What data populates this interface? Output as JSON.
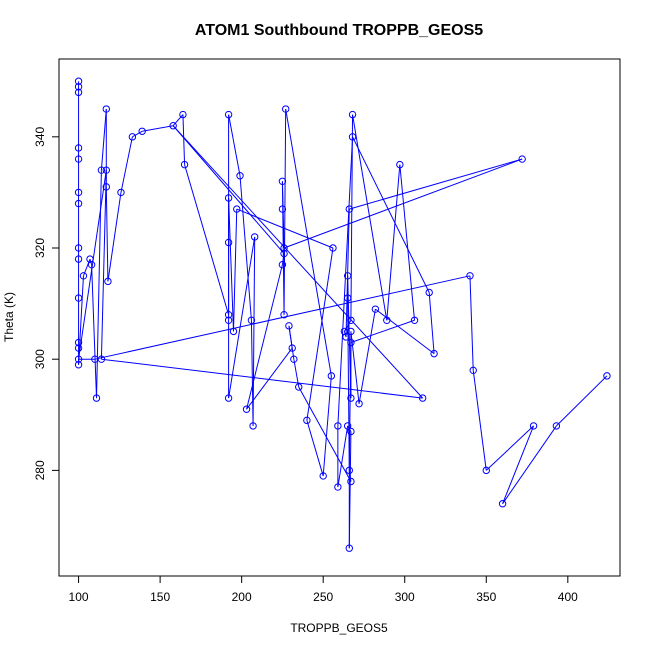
{
  "chart_data": {
    "type": "scatter",
    "title": "ATOM1 Southbound TROPPB_GEOS5",
    "xlabel": "TROPPB_GEOS5",
    "ylabel": "Theta (K)",
    "xlim": [
      88,
      432
    ],
    "ylim": [
      261,
      354
    ],
    "x_ticks": [
      100,
      150,
      200,
      250,
      300,
      350,
      400
    ],
    "y_ticks": [
      280,
      300,
      320,
      340
    ],
    "grid": false,
    "legend": "none",
    "colors": {
      "series": "#0000ff",
      "axes": "#000000",
      "background": "#ffffff"
    },
    "series": [
      {
        "points": [
          [
            100,
            350
          ],
          [
            100,
            349
          ],
          [
            100,
            348
          ],
          [
            100,
            338
          ],
          [
            100,
            336
          ],
          [
            100,
            330
          ],
          [
            100,
            328
          ],
          [
            100,
            320
          ],
          [
            100,
            318
          ],
          [
            100,
            311
          ],
          [
            100,
            303
          ],
          [
            100,
            302
          ],
          [
            100,
            300
          ],
          [
            100,
            299
          ],
          [
            103,
            315
          ],
          [
            107,
            318
          ],
          [
            108,
            317
          ],
          [
            110,
            300
          ],
          [
            111,
            293
          ],
          [
            114,
            300
          ],
          [
            114,
            334
          ],
          [
            117,
            345
          ],
          [
            117,
            331
          ],
          [
            117,
            334
          ],
          [
            118,
            314
          ],
          [
            126,
            330
          ],
          [
            133,
            340
          ],
          [
            139,
            341
          ],
          [
            158,
            342
          ],
          [
            164,
            344
          ],
          [
            165,
            335
          ],
          [
            192,
            344
          ],
          [
            192,
            329
          ],
          [
            192,
            321
          ],
          [
            192,
            308
          ],
          [
            192,
            307
          ],
          [
            192,
            293
          ],
          [
            195,
            305
          ],
          [
            197,
            327
          ],
          [
            199,
            333
          ],
          [
            203,
            291
          ],
          [
            206,
            307
          ],
          [
            207,
            288
          ],
          [
            208,
            322
          ],
          [
            225,
            332
          ],
          [
            225,
            327
          ],
          [
            225,
            317
          ],
          [
            226,
            320
          ],
          [
            226,
            319
          ],
          [
            226,
            308
          ],
          [
            227,
            345
          ],
          [
            229,
            306
          ],
          [
            231,
            302
          ],
          [
            232,
            300
          ],
          [
            235,
            295
          ],
          [
            240,
            289
          ],
          [
            250,
            279
          ],
          [
            255,
            297
          ],
          [
            256,
            320
          ],
          [
            259,
            277
          ],
          [
            259,
            288
          ],
          [
            263,
            305
          ],
          [
            264,
            304
          ],
          [
            265,
            315
          ],
          [
            265,
            311
          ],
          [
            265,
            288
          ],
          [
            266,
            327
          ],
          [
            266,
            280
          ],
          [
            266,
            266
          ],
          [
            267,
            303
          ],
          [
            267,
            305
          ],
          [
            267,
            307
          ],
          [
            267,
            287
          ],
          [
            267,
            293
          ],
          [
            267,
            278
          ],
          [
            268,
            340
          ],
          [
            268,
            344
          ],
          [
            272,
            292
          ],
          [
            282,
            309
          ],
          [
            289,
            307
          ],
          [
            297,
            335
          ],
          [
            306,
            307
          ],
          [
            311,
            293
          ],
          [
            315,
            312
          ],
          [
            318,
            301
          ],
          [
            340,
            315
          ],
          [
            342,
            298
          ],
          [
            350,
            280
          ],
          [
            360,
            274
          ],
          [
            372,
            336
          ],
          [
            379,
            288
          ],
          [
            393,
            288
          ],
          [
            424,
            297
          ]
        ],
        "path": [
          [
            100,
            350
          ],
          [
            100,
            348
          ],
          [
            100,
            338
          ],
          [
            100,
            330
          ],
          [
            100,
            320
          ],
          [
            100,
            311
          ],
          [
            100,
            303
          ],
          [
            100,
            299
          ],
          [
            103,
            315
          ],
          [
            107,
            318
          ],
          [
            108,
            317
          ],
          [
            111,
            293
          ],
          [
            114,
            334
          ],
          [
            117,
            345
          ],
          [
            117,
            331
          ],
          [
            118,
            314
          ],
          [
            126,
            330
          ],
          [
            133,
            340
          ],
          [
            139,
            341
          ],
          [
            158,
            342
          ],
          [
            164,
            344
          ],
          [
            165,
            335
          ],
          [
            192,
            308
          ],
          [
            192,
            344
          ],
          [
            199,
            333
          ],
          [
            206,
            307
          ],
          [
            207,
            288
          ],
          [
            208,
            322
          ],
          [
            192,
            293
          ],
          [
            192,
            329
          ],
          [
            195,
            305
          ],
          [
            197,
            327
          ],
          [
            256,
            320
          ],
          [
            240,
            289
          ],
          [
            250,
            279
          ],
          [
            255,
            297
          ],
          [
            227,
            345
          ],
          [
            226,
            308
          ],
          [
            225,
            332
          ],
          [
            226,
            320
          ],
          [
            372,
            336
          ],
          [
            266,
            327
          ],
          [
            264,
            304
          ],
          [
            263,
            305
          ],
          [
            267,
            307
          ],
          [
            268,
            344
          ],
          [
            289,
            307
          ],
          [
            297,
            335
          ],
          [
            306,
            307
          ],
          [
            267,
            303
          ],
          [
            267,
            293
          ],
          [
            265,
            315
          ],
          [
            265,
            311
          ],
          [
            266,
            280
          ],
          [
            266,
            266
          ],
          [
            267,
            287
          ],
          [
            265,
            288
          ],
          [
            259,
            277
          ],
          [
            259,
            288
          ],
          [
            268,
            340
          ],
          [
            315,
            312
          ],
          [
            318,
            301
          ],
          [
            282,
            309
          ],
          [
            272,
            292
          ],
          [
            267,
            305
          ],
          [
            266,
            280
          ],
          [
            267,
            278
          ],
          [
            235,
            295
          ],
          [
            232,
            300
          ],
          [
            229,
            306
          ],
          [
            231,
            302
          ],
          [
            203,
            291
          ],
          [
            225,
            317
          ],
          [
            226,
            319
          ],
          [
            158,
            342
          ],
          [
            311,
            293
          ],
          [
            114,
            300
          ],
          [
            117,
            334
          ],
          [
            100,
            300
          ],
          [
            110,
            300
          ],
          [
            340,
            315
          ],
          [
            342,
            298
          ],
          [
            350,
            280
          ],
          [
            379,
            288
          ],
          [
            360,
            274
          ],
          [
            393,
            288
          ],
          [
            424,
            297
          ]
        ]
      }
    ]
  }
}
